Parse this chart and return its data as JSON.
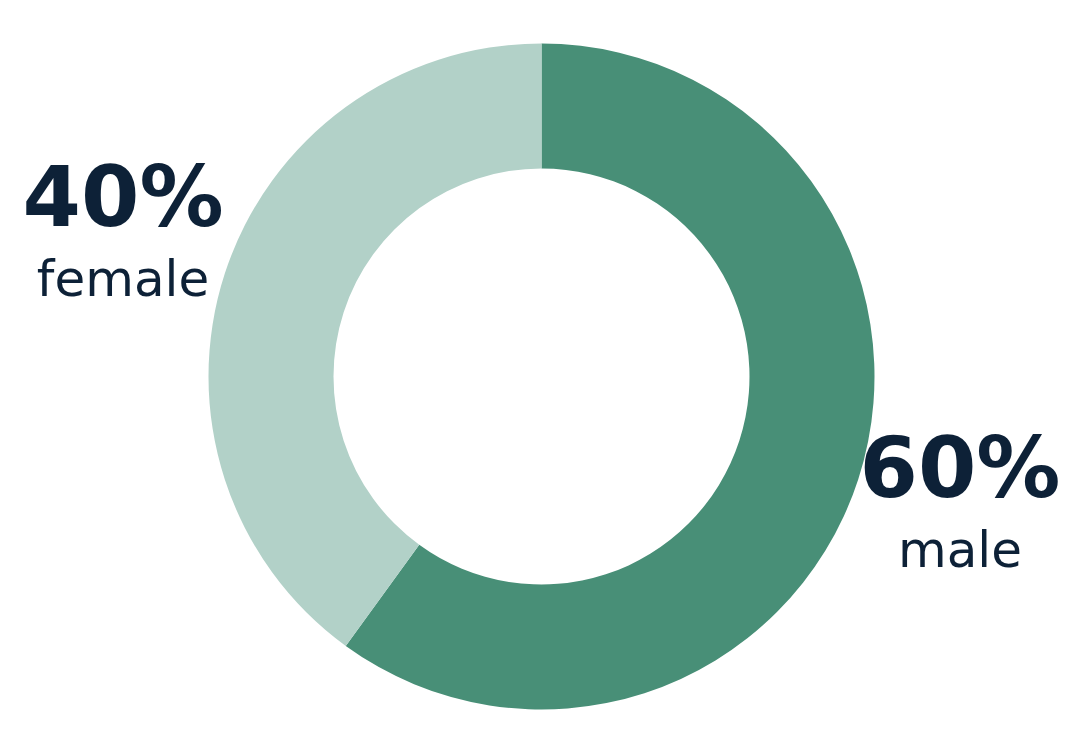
{
  "chart_data": {
    "type": "donut",
    "categories": [
      "male",
      "female"
    ],
    "values": [
      60,
      40
    ],
    "colors": [
      "#488f77",
      "#b2d1c8"
    ],
    "value_labels": [
      "60%",
      "40%"
    ]
  }
}
